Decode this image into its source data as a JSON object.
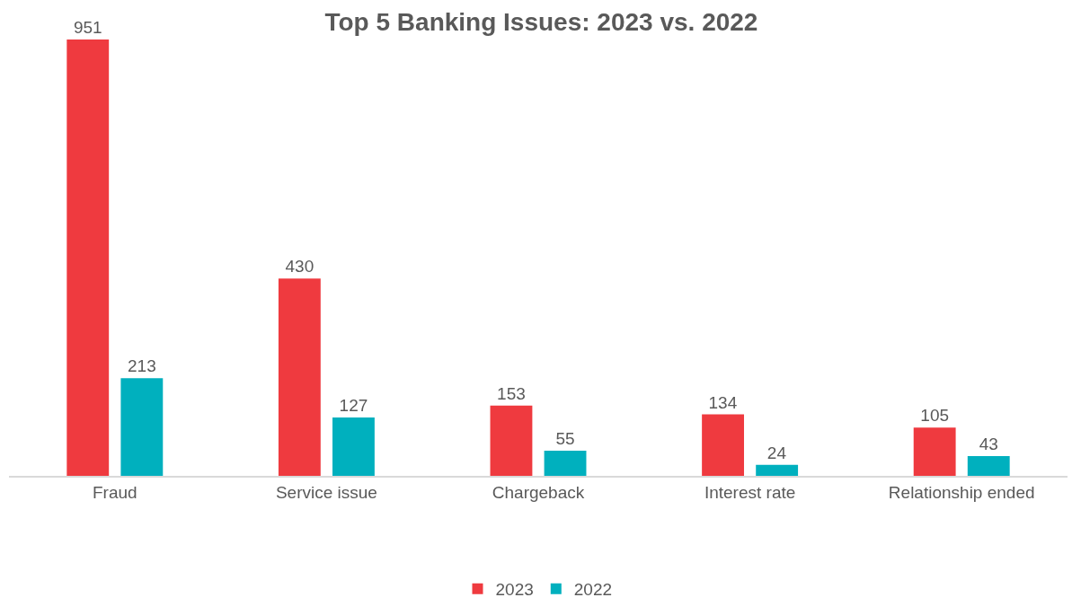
{
  "chart_data": {
    "type": "bar",
    "title": "Top 5 Banking Issues: 2023 vs. 2022",
    "categories": [
      "Fraud",
      "Service issue",
      "Chargeback",
      "Interest rate",
      "Relationship ended"
    ],
    "series": [
      {
        "name": "2023",
        "color": "#ef3a3f",
        "values": [
          951,
          430,
          153,
          134,
          105
        ]
      },
      {
        "name": "2022",
        "color": "#00b0be",
        "values": [
          213,
          127,
          55,
          24,
          43
        ]
      }
    ],
    "data_labels": true,
    "grid": false,
    "legend": "bottom"
  }
}
